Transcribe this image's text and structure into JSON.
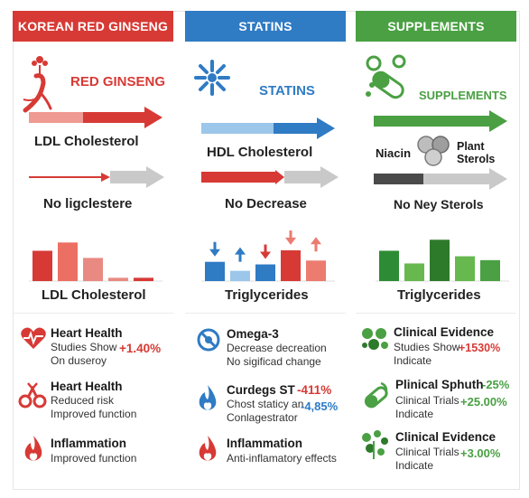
{
  "columns": {
    "ginseng": {
      "header": "KOREAN RED GINSENG",
      "title": "RED GINSENG",
      "label1": "LDL Cholesterol",
      "label2": "No ligclestere",
      "chart_label": "LDL Cholesterol",
      "bars": [
        0.55,
        0.7,
        0.42,
        0.06,
        0.06
      ],
      "items": [
        {
          "icon": "heart-pulse-icon",
          "title": "Heart Health",
          "line1": "Studies Show",
          "line2": "On duseroy",
          "value": "+1.40%"
        },
        {
          "icon": "blood-cells-icon",
          "title": "Heart Health",
          "line1": "Reduced risk",
          "line2": "Improved function",
          "value": ""
        },
        {
          "icon": "flame-icon",
          "title": "Inflammation",
          "line1": "Improved function",
          "line2": "",
          "value": ""
        }
      ]
    },
    "statins": {
      "header": "STATINS",
      "title": "STATINS",
      "label1": "HDL Cholesterol",
      "label2": "No Decrease",
      "chart_label": "Triglycerides",
      "bars": [
        0.3,
        0.16,
        0.26,
        0.48,
        0.32
      ],
      "items": [
        {
          "icon": "omega-icon",
          "title": "Omega-3",
          "line1": "Decrease decreation",
          "line2": "No sigificad change",
          "value": ""
        },
        {
          "icon": "flame-icon",
          "title": "Curdegs ST",
          "line1": "Chost staticy an",
          "line2": "Conlagestrator",
          "value": "-411%",
          "value2": "-4,85%"
        },
        {
          "icon": "flame-icon",
          "title": "Inflammation",
          "line1": "Anti-inflamatory effects",
          "line2": "",
          "value": ""
        }
      ]
    },
    "supplements": {
      "header": "SUPPLEMENTS",
      "title": "SUPPLEMENTS",
      "niacin": "Niacin",
      "plant_sterols": "Plant Sterols",
      "label2": "No Ney Sterols",
      "chart_label": "Triglycerides",
      "bars": [
        0.55,
        0.32,
        0.75,
        0.45,
        0.38
      ],
      "items": [
        {
          "icon": "pills-icon",
          "title": "Clinical Evidence",
          "line1": "Studies Show",
          "line2": "Indicate",
          "value": "+1530%"
        },
        {
          "icon": "capsule-icon",
          "title": "Plinical Sphuth",
          "line1": "Clinical Trials",
          "line2": "Indicate",
          "value": "+25.00%",
          "value_title": "-25%"
        },
        {
          "icon": "herbs-icon",
          "title": "Clinical Evidence",
          "line1": "Clinical Trials",
          "line2": "Indicate",
          "value": "+3.00%"
        }
      ]
    }
  },
  "colors": {
    "red": "#d73a35",
    "blue": "#2f7bc4",
    "green": "#4aa043"
  }
}
